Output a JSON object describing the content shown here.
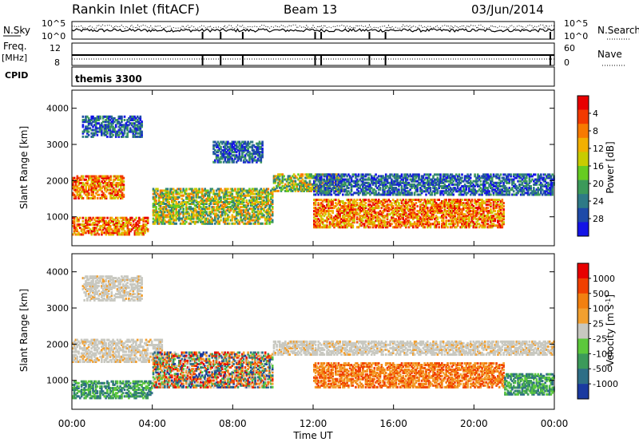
{
  "header": {
    "title": "Rankin Inlet (fitACF)",
    "beam": "Beam 13",
    "date": "03/Jun/2014"
  },
  "summary": {
    "nsky_label": "N.Sky",
    "nsky_ticks": [
      "10^5",
      "10^0"
    ],
    "nsearch_label": "N.Search",
    "nsearch_ticks": [
      "10^5",
      "10^0"
    ],
    "freq_label": "Freq.",
    "freq_unit": "[MHz]",
    "freq_ticks": [
      "12",
      "8"
    ],
    "nave_label": "Nave",
    "nave_ticks": [
      "60",
      "0"
    ],
    "cpid_label": "CPID",
    "cpid_value": "themis 3300"
  },
  "chart_data": [
    {
      "type": "heatmap",
      "panel": "power",
      "xlabel": "Time UT",
      "ylabel": "Slant Range [km]",
      "xticks": [
        "00:00",
        "04:00",
        "08:00",
        "12:00",
        "16:00",
        "20:00",
        "00:00"
      ],
      "x_hours": [
        0,
        4,
        8,
        12,
        16,
        20,
        24
      ],
      "xlim": [
        0,
        24
      ],
      "ylim": [
        200,
        4500
      ],
      "yticks": [
        1000,
        2000,
        3000,
        4000
      ],
      "colorbar": {
        "label": "Power [dB]",
        "ticks": [
          "4",
          "8",
          "12",
          "16",
          "20",
          "24",
          "28"
        ],
        "colors": [
          "#1414e6",
          "#1e4aa8",
          "#2e7a86",
          "#3c9a5a",
          "#66cc22",
          "#c8cc00",
          "#f2b000",
          "#f77a00",
          "#f23a00",
          "#e80000"
        ]
      },
      "bands": [
        {
          "t0": 0.0,
          "t1": 2.6,
          "r0": 1500,
          "r1": 2150,
          "level": "high"
        },
        {
          "t0": 0.0,
          "t1": 3.8,
          "r0": 500,
          "r1": 1000,
          "level": "high"
        },
        {
          "t0": 4.0,
          "t1": 10.0,
          "r0": 800,
          "r1": 1800,
          "level": "medium"
        },
        {
          "t0": 10.0,
          "t1": 13.5,
          "r0": 1700,
          "r1": 2200,
          "level": "medium"
        },
        {
          "t0": 12.0,
          "t1": 24.0,
          "r0": 1600,
          "r1": 2200,
          "level": "low"
        },
        {
          "t0": 12.0,
          "t1": 21.5,
          "r0": 700,
          "r1": 1500,
          "level": "high"
        },
        {
          "t0": 0.5,
          "t1": 3.5,
          "r0": 3200,
          "r1": 3800,
          "level": "low"
        },
        {
          "t0": 7.0,
          "t1": 9.5,
          "r0": 2500,
          "r1": 3100,
          "level": "low"
        }
      ]
    },
    {
      "type": "heatmap",
      "panel": "velocity",
      "xlabel": "Time UT",
      "ylabel": "Slant Range [km]",
      "xticks": [
        "00:00",
        "04:00",
        "08:00",
        "12:00",
        "16:00",
        "20:00",
        "00:00"
      ],
      "x_hours": [
        0,
        4,
        8,
        12,
        16,
        20,
        24
      ],
      "xlim": [
        0,
        24
      ],
      "ylim": [
        200,
        4500
      ],
      "yticks": [
        1000,
        2000,
        3000,
        4000
      ],
      "colorbar": {
        "label": "Velocity [m s^-1]",
        "ticks": [
          "1000",
          "500",
          "100",
          "25",
          "-25",
          "-100",
          "-500",
          "-1000"
        ],
        "colors": [
          "#1a3aa0",
          "#2e6e86",
          "#3c9a5a",
          "#5cc83c",
          "#c8c8c0",
          "#f2a030",
          "#f28010",
          "#f04000",
          "#e80000"
        ]
      },
      "bands": [
        {
          "t0": 0.0,
          "t1": 4.5,
          "r0": 1500,
          "r1": 2150,
          "level": "ground"
        },
        {
          "t0": 0.0,
          "t1": 4.0,
          "r0": 500,
          "r1": 1000,
          "level": "green"
        },
        {
          "t0": 4.0,
          "t1": 10.0,
          "r0": 800,
          "r1": 1800,
          "level": "mix"
        },
        {
          "t0": 10.0,
          "t1": 24.0,
          "r0": 1700,
          "r1": 2100,
          "level": "ground"
        },
        {
          "t0": 12.0,
          "t1": 21.5,
          "r0": 800,
          "r1": 1500,
          "level": "orange"
        },
        {
          "t0": 0.5,
          "t1": 3.5,
          "r0": 3200,
          "r1": 3900,
          "level": "ground"
        },
        {
          "t0": 21.5,
          "t1": 24.0,
          "r0": 600,
          "r1": 1200,
          "level": "green"
        }
      ]
    }
  ]
}
